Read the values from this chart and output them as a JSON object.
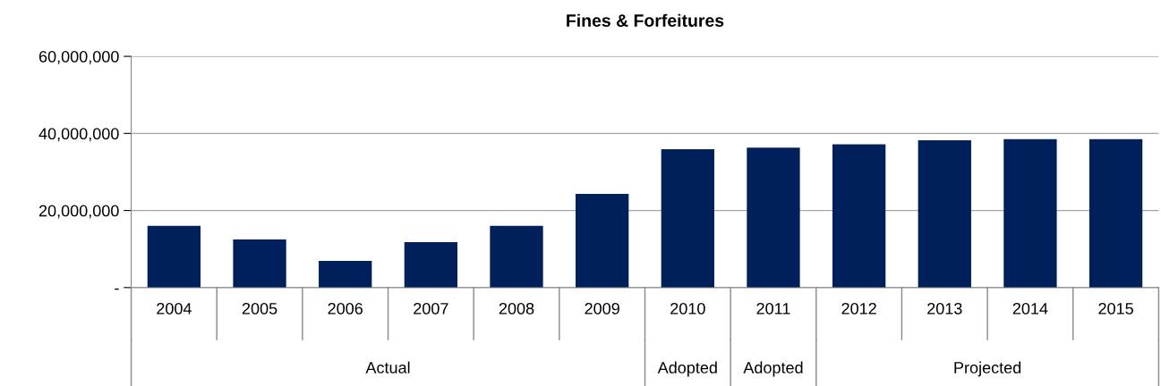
{
  "chart_data": {
    "type": "bar",
    "title": "Fines & Forfeitures",
    "categories": [
      "2004",
      "2005",
      "2006",
      "2007",
      "2008",
      "2009",
      "2010",
      "2011",
      "2012",
      "2013",
      "2014",
      "2015"
    ],
    "values": [
      16000000,
      12500000,
      6900000,
      11800000,
      16000000,
      24300000,
      35900000,
      36300000,
      37200000,
      38200000,
      38500000,
      38500000
    ],
    "color": "#00205b",
    "ylim": [
      0,
      60000000
    ],
    "yticks": [
      {
        "value": 0,
        "label": "-"
      },
      {
        "value": 20000000,
        "label": "20,000,000"
      },
      {
        "value": 40000000,
        "label": "40,000,000"
      },
      {
        "value": 60000000,
        "label": "60,000,000"
      }
    ],
    "grid": "y",
    "annotations": [
      "Actual",
      "Adopted",
      "Adopted",
      "Projected"
    ]
  }
}
